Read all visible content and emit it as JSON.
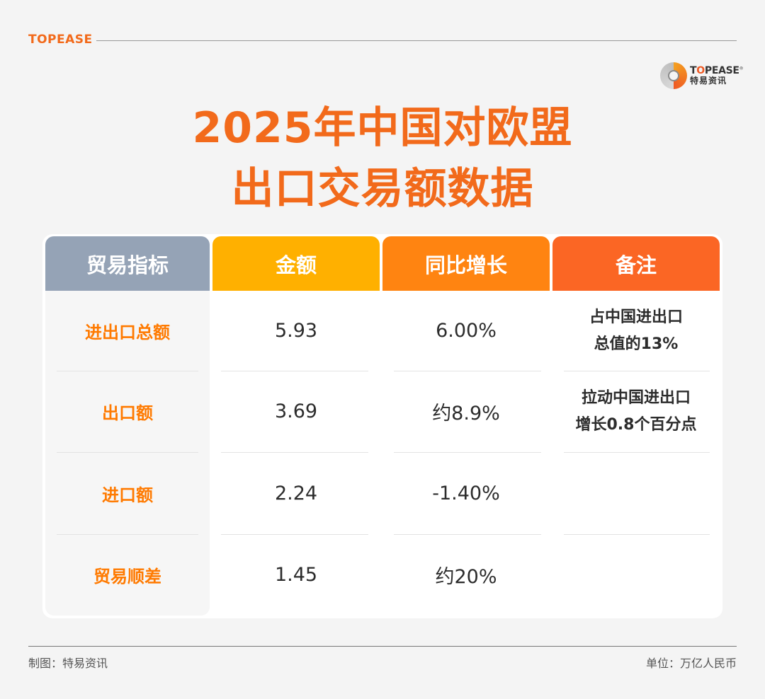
{
  "header": {
    "brand": "TOPEASE",
    "logo_en_prefix": "T",
    "logo_en_o": "O",
    "logo_en_rest": "PEASE",
    "logo_cn": "特易资讯"
  },
  "title": {
    "line1": "2025年中国对欧盟",
    "line2": "出口交易额数据"
  },
  "table": {
    "columns": [
      "贸易指标",
      "金额",
      "同比增长",
      "备注"
    ],
    "column_colors": [
      "#95a3b6",
      "#ffb000",
      "#ff8411",
      "#fb6624"
    ],
    "rows": [
      {
        "indicator": "进出口总额",
        "amount": "5.93",
        "growth": "6.00%",
        "note_line1": "占中国进出口",
        "note_line2": "总值的13%"
      },
      {
        "indicator": "出口额",
        "amount": "3.69",
        "growth": "约8.9%",
        "note_line1": "拉动中国进出口",
        "note_line2": "增长0.8个百分点"
      },
      {
        "indicator": "进口额",
        "amount": "2.24",
        "growth": "-1.40%",
        "note_line1": "",
        "note_line2": ""
      },
      {
        "indicator": "贸易顺差",
        "amount": "1.45",
        "growth": "约20%",
        "note_line1": "",
        "note_line2": ""
      }
    ]
  },
  "footer": {
    "left": "制图：特易资讯",
    "right": "单位：万亿人民币"
  }
}
